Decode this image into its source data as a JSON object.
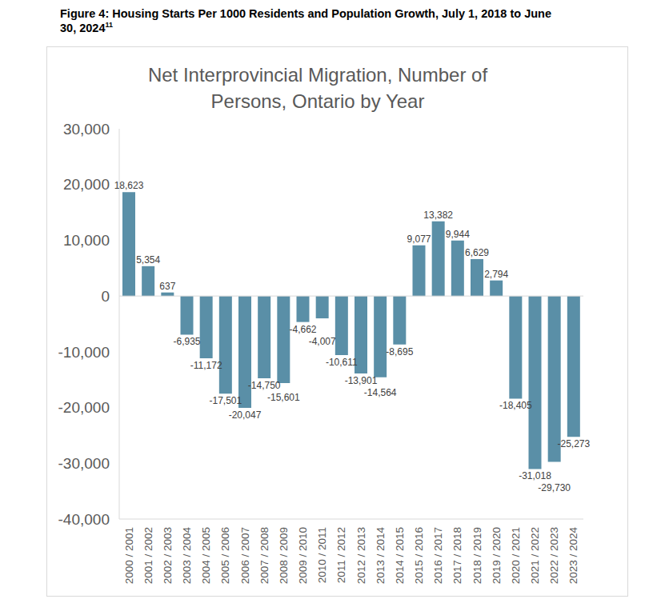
{
  "chart_data": {
    "type": "bar",
    "caption": "Figure 4: Housing Starts Per 1000 Residents and Population Growth, July 1, 2018 to June 30, 2024",
    "caption_footnote": "11",
    "title": "Net Interprovincial Migration, Number of Persons, Ontario by Year",
    "categories": [
      "2000 / 2001",
      "2001 / 2002",
      "2002 / 2003",
      "2003 / 2004",
      "2004 / 2005",
      "2005 / 2006",
      "2006 / 2007",
      "2007 / 2008",
      "2008 / 2009",
      "2009 / 2010",
      "2010 / 2011",
      "2011 / 2012",
      "2012 / 2013",
      "2013 / 2014",
      "2014 / 2015",
      "2015 / 2016",
      "2016 / 2017",
      "2017 / 2018",
      "2018 / 2019",
      "2019 / 2020",
      "2020 / 2021",
      "2021 / 2022",
      "2022 / 2023",
      "2023 / 2024"
    ],
    "values": [
      18623,
      5354,
      637,
      -6935,
      -11172,
      -17501,
      -20047,
      -14750,
      -15601,
      -4662,
      -4007,
      -10611,
      -13901,
      -14564,
      -8695,
      9077,
      13382,
      9944,
      6629,
      2794,
      -18405,
      -31018,
      -29730,
      -25273
    ],
    "value_labels": [
      "18,623",
      "5,354",
      "637",
      "-6,935",
      "-11,172",
      "-17,501",
      "-20,047",
      "-14,750",
      "-15,601",
      "-4,662",
      "-4,007",
      "-10,611",
      "-13,901",
      "-14,564",
      "-8,695",
      "9,077",
      "13,382",
      "9,944",
      "6,629",
      "2,794",
      "-18,405",
      "-31,018",
      "-29,730",
      "-25,273"
    ],
    "color": "#5a8fa7",
    "ylim": [
      -40000,
      30000
    ],
    "yticks": [
      {
        "value": -40000,
        "label": "-40,000"
      },
      {
        "value": -30000,
        "label": "-30,000"
      },
      {
        "value": -20000,
        "label": "-20,000"
      },
      {
        "value": -10000,
        "label": "-10,000"
      },
      0,
      {
        "value": 10000,
        "label": "10,000"
      },
      {
        "value": 20000,
        "label": "20,000"
      },
      {
        "value": 30000,
        "label": "30,000"
      }
    ],
    "grid": false,
    "data_labels": true
  }
}
